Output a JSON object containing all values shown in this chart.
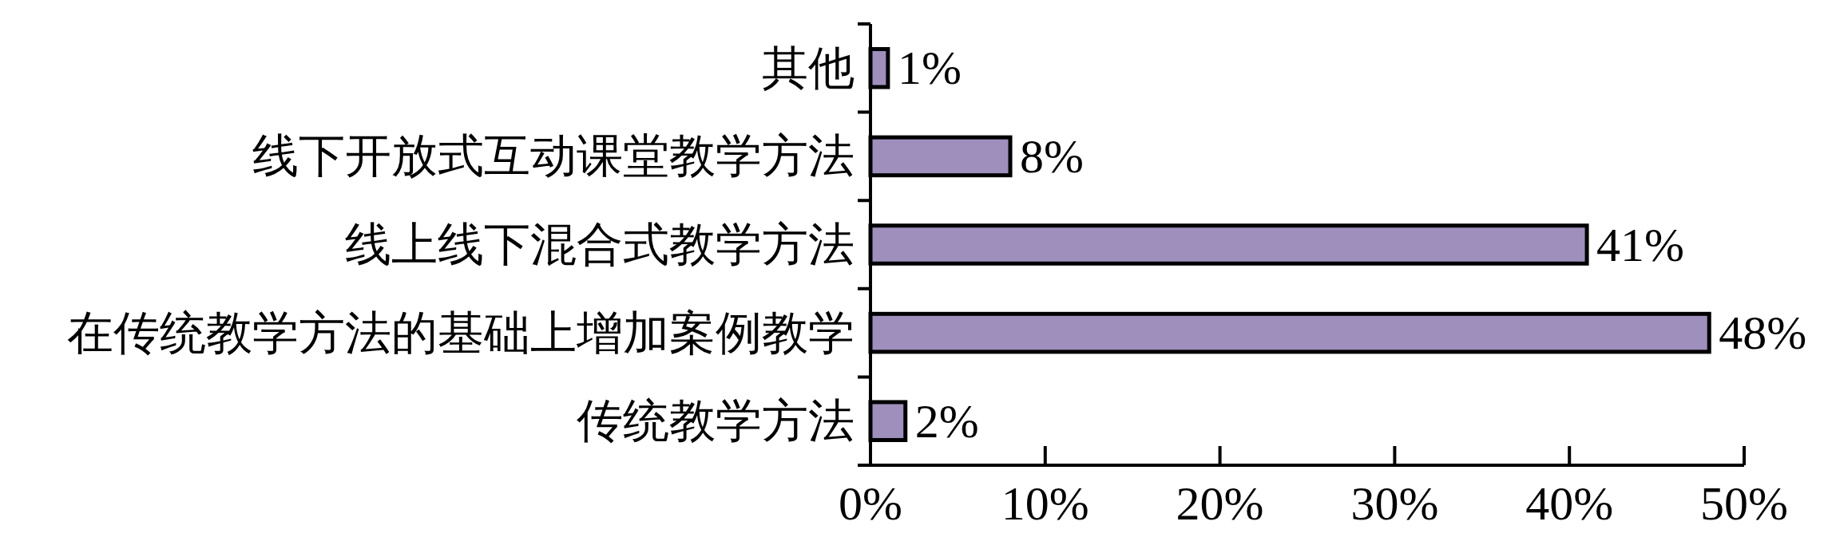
{
  "chart_data": {
    "type": "bar",
    "orientation": "horizontal",
    "categories": [
      "其他",
      "线下开放式互动课堂教学方法",
      "线上线下混合式教学方法",
      "在传统教学方法的基础上增加案例教学",
      "传统教学方法"
    ],
    "values": [
      1,
      8,
      41,
      48,
      2
    ],
    "value_labels": [
      "1%",
      "8%",
      "41%",
      "48%",
      "2%"
    ],
    "color": "#9e8fbc",
    "xlim": [
      0,
      50
    ],
    "xticks": [
      {
        "value": 0,
        "label": "0%"
      },
      {
        "value": 10,
        "label": "10%"
      },
      {
        "value": 20,
        "label": "20%"
      },
      {
        "value": 30,
        "label": "30%"
      },
      {
        "value": 40,
        "label": "40%"
      },
      {
        "value": 50,
        "label": "50%"
      }
    ]
  }
}
